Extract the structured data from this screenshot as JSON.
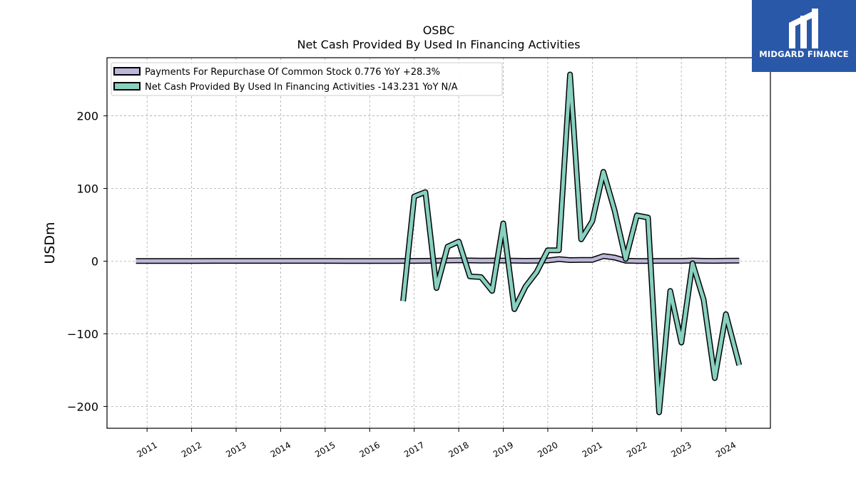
{
  "brand": {
    "name": "MIDGARD FINANCE",
    "color": "#2a58a8"
  },
  "chart_data": {
    "type": "line",
    "title": "OSBC",
    "subtitle": "Net Cash Provided By Used In Financing Activities",
    "ylabel": "USDm",
    "xlim": [
      2010.1,
      2025.0
    ],
    "ylim": [
      -230,
      280
    ],
    "yticks": [
      -200,
      -100,
      0,
      100,
      200
    ],
    "ytick_labels": [
      "−200",
      "−100",
      "0",
      "100",
      "200"
    ],
    "xticks": [
      2011,
      2012,
      2013,
      2014,
      2015,
      2016,
      2017,
      2018,
      2019,
      2020,
      2021,
      2022,
      2023,
      2024
    ],
    "xtick_labels": [
      "2011",
      "2012",
      "2013",
      "2014",
      "2015",
      "2016",
      "2017",
      "2018",
      "2019",
      "2020",
      "2021",
      "2022",
      "2023",
      "2024"
    ],
    "grid": true,
    "legend_position": "top-left",
    "series": [
      {
        "name": "Payments For Repurchase Of Common Stock",
        "legend_label": "Payments For Repurchase Of Common Stock  0.776 YoY +28.3%",
        "color": "#bcb6d8",
        "x": [
          2010.75,
          2011.0,
          2011.5,
          2012.0,
          2012.5,
          2013.0,
          2013.5,
          2014.0,
          2014.5,
          2015.0,
          2015.5,
          2016.0,
          2016.5,
          2017.0,
          2017.5,
          2018.0,
          2018.5,
          2019.0,
          2019.5,
          2019.75,
          2020.0,
          2020.25,
          2020.5,
          2020.75,
          2021.0,
          2021.25,
          2021.5,
          2021.75,
          2022.0,
          2022.25,
          2022.5,
          2022.75,
          2023.0,
          2023.25,
          2023.5,
          2023.75,
          2024.0,
          2024.3
        ],
        "y": [
          0.3,
          0.3,
          0.3,
          0.3,
          0.4,
          0.4,
          0.4,
          0.4,
          0.4,
          0.4,
          0.3,
          0.3,
          0.3,
          0.4,
          0.6,
          1.2,
          0.8,
          0.9,
          0.5,
          0.6,
          1.0,
          2.8,
          1.5,
          1.7,
          1.8,
          7.0,
          5.0,
          0.6,
          0.3,
          0.3,
          0.4,
          0.4,
          0.4,
          0.9,
          0.5,
          0.4,
          0.6,
          0.776
        ]
      },
      {
        "name": "Net Cash Provided By Used In Financing Activities",
        "legend_label": "Net Cash Provided By Used In Financing Activities  -143.231 YoY N/A",
        "color": "#88d0c0",
        "x": [
          2016.75,
          2017.0,
          2017.25,
          2017.5,
          2017.75,
          2018.0,
          2018.25,
          2018.5,
          2018.75,
          2019.0,
          2019.25,
          2019.5,
          2019.75,
          2020.0,
          2020.25,
          2020.5,
          2020.75,
          2021.0,
          2021.25,
          2021.5,
          2021.75,
          2022.0,
          2022.25,
          2022.5,
          2022.75,
          2023.0,
          2023.25,
          2023.5,
          2023.75,
          2024.0,
          2024.3
        ],
        "y": [
          -55,
          89,
          95,
          -37,
          20,
          27,
          -21,
          -22,
          -41,
          52,
          -66,
          -35,
          -15,
          15,
          15,
          257,
          30,
          55,
          123,
          70,
          3,
          63,
          60,
          -208,
          -41,
          -112,
          -3,
          -53,
          -161,
          -73,
          -143.231
        ]
      }
    ]
  }
}
